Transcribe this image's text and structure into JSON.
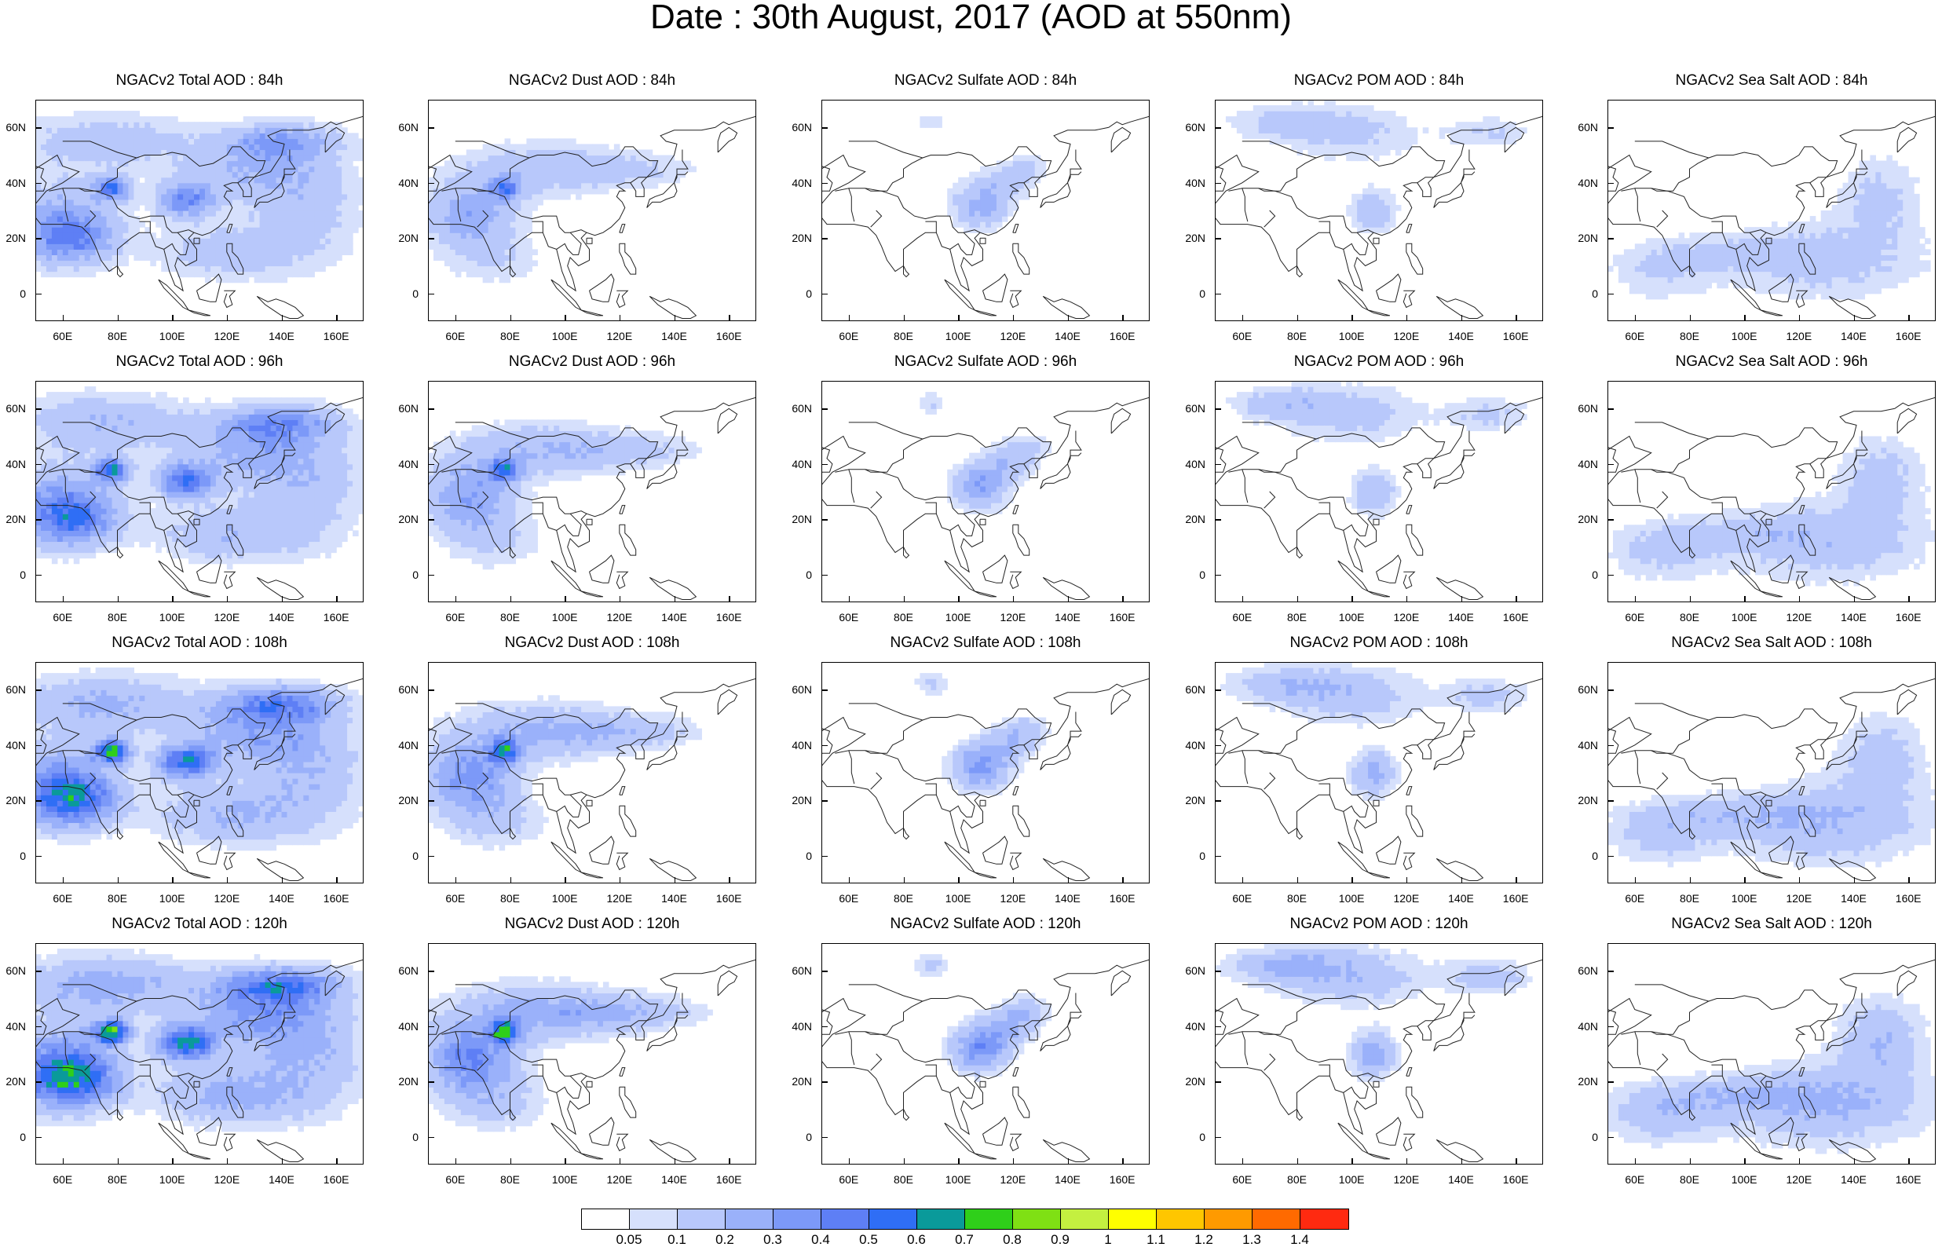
{
  "title": "Date : 30th August, 2017 (AOD at 550nm)",
  "map_axes": {
    "lat_labels": [
      "60N",
      "40N",
      "20N",
      "0"
    ],
    "lon_labels": [
      "60E",
      "80E",
      "100E",
      "120E",
      "140E",
      "160E"
    ],
    "lat_range": [
      -10,
      70
    ],
    "lon_range": [
      50,
      170
    ]
  },
  "rows": [
    {
      "forecast_hour": "84h",
      "panels": [
        {
          "species": "total",
          "title": "NGACv2 Total AOD : 84h"
        },
        {
          "species": "dust",
          "title": "NGACv2 Dust AOD : 84h"
        },
        {
          "species": "sulfate",
          "title": "NGACv2 Sulfate AOD : 84h"
        },
        {
          "species": "pom",
          "title": "NGACv2 POM AOD : 84h"
        },
        {
          "species": "seasalt",
          "title": "NGACv2 Sea Salt AOD : 84h"
        }
      ]
    },
    {
      "forecast_hour": "96h",
      "panels": [
        {
          "species": "total",
          "title": "NGACv2 Total AOD : 96h"
        },
        {
          "species": "dust",
          "title": "NGACv2 Dust AOD : 96h"
        },
        {
          "species": "sulfate",
          "title": "NGACv2 Sulfate AOD : 96h"
        },
        {
          "species": "pom",
          "title": "NGACv2 POM AOD : 96h"
        },
        {
          "species": "seasalt",
          "title": "NGACv2 Sea Salt AOD : 96h"
        }
      ]
    },
    {
      "forecast_hour": "108h",
      "panels": [
        {
          "species": "total",
          "title": "NGACv2 Total AOD : 108h"
        },
        {
          "species": "dust",
          "title": "NGACv2 Dust AOD : 108h"
        },
        {
          "species": "sulfate",
          "title": "NGACv2 Sulfate AOD : 108h"
        },
        {
          "species": "pom",
          "title": "NGACv2 POM AOD : 108h"
        },
        {
          "species": "seasalt",
          "title": "NGACv2 Sea Salt AOD : 108h"
        }
      ]
    },
    {
      "forecast_hour": "120h",
      "panels": [
        {
          "species": "total",
          "title": "NGACv2 Total AOD : 120h"
        },
        {
          "species": "dust",
          "title": "NGACv2 Dust AOD : 120h"
        },
        {
          "species": "sulfate",
          "title": "NGACv2 Sulfate AOD : 120h"
        },
        {
          "species": "pom",
          "title": "NGACv2 POM AOD : 120h"
        },
        {
          "species": "seasalt",
          "title": "NGACv2 Sea Salt  AOD : 120h"
        }
      ]
    }
  ],
  "colorbar": {
    "labels": [
      "0.05",
      "0.1",
      "0.2",
      "0.3",
      "0.4",
      "0.5",
      "0.6",
      "0.7",
      "0.8",
      "0.9",
      "1",
      "1.1",
      "1.2",
      "1.3",
      "1.4"
    ],
    "colors": [
      "#ffffff",
      "#d6e0fc",
      "#b8c8fb",
      "#9ab1fa",
      "#7c99f8",
      "#5e7ff5",
      "#2f6ef5",
      "#0a9a9a",
      "#2fcf1a",
      "#7fe014",
      "#c4f040",
      "#ffff00",
      "#ffc600",
      "#ff9a00",
      "#ff6a00",
      "#ff2a10"
    ]
  }
}
